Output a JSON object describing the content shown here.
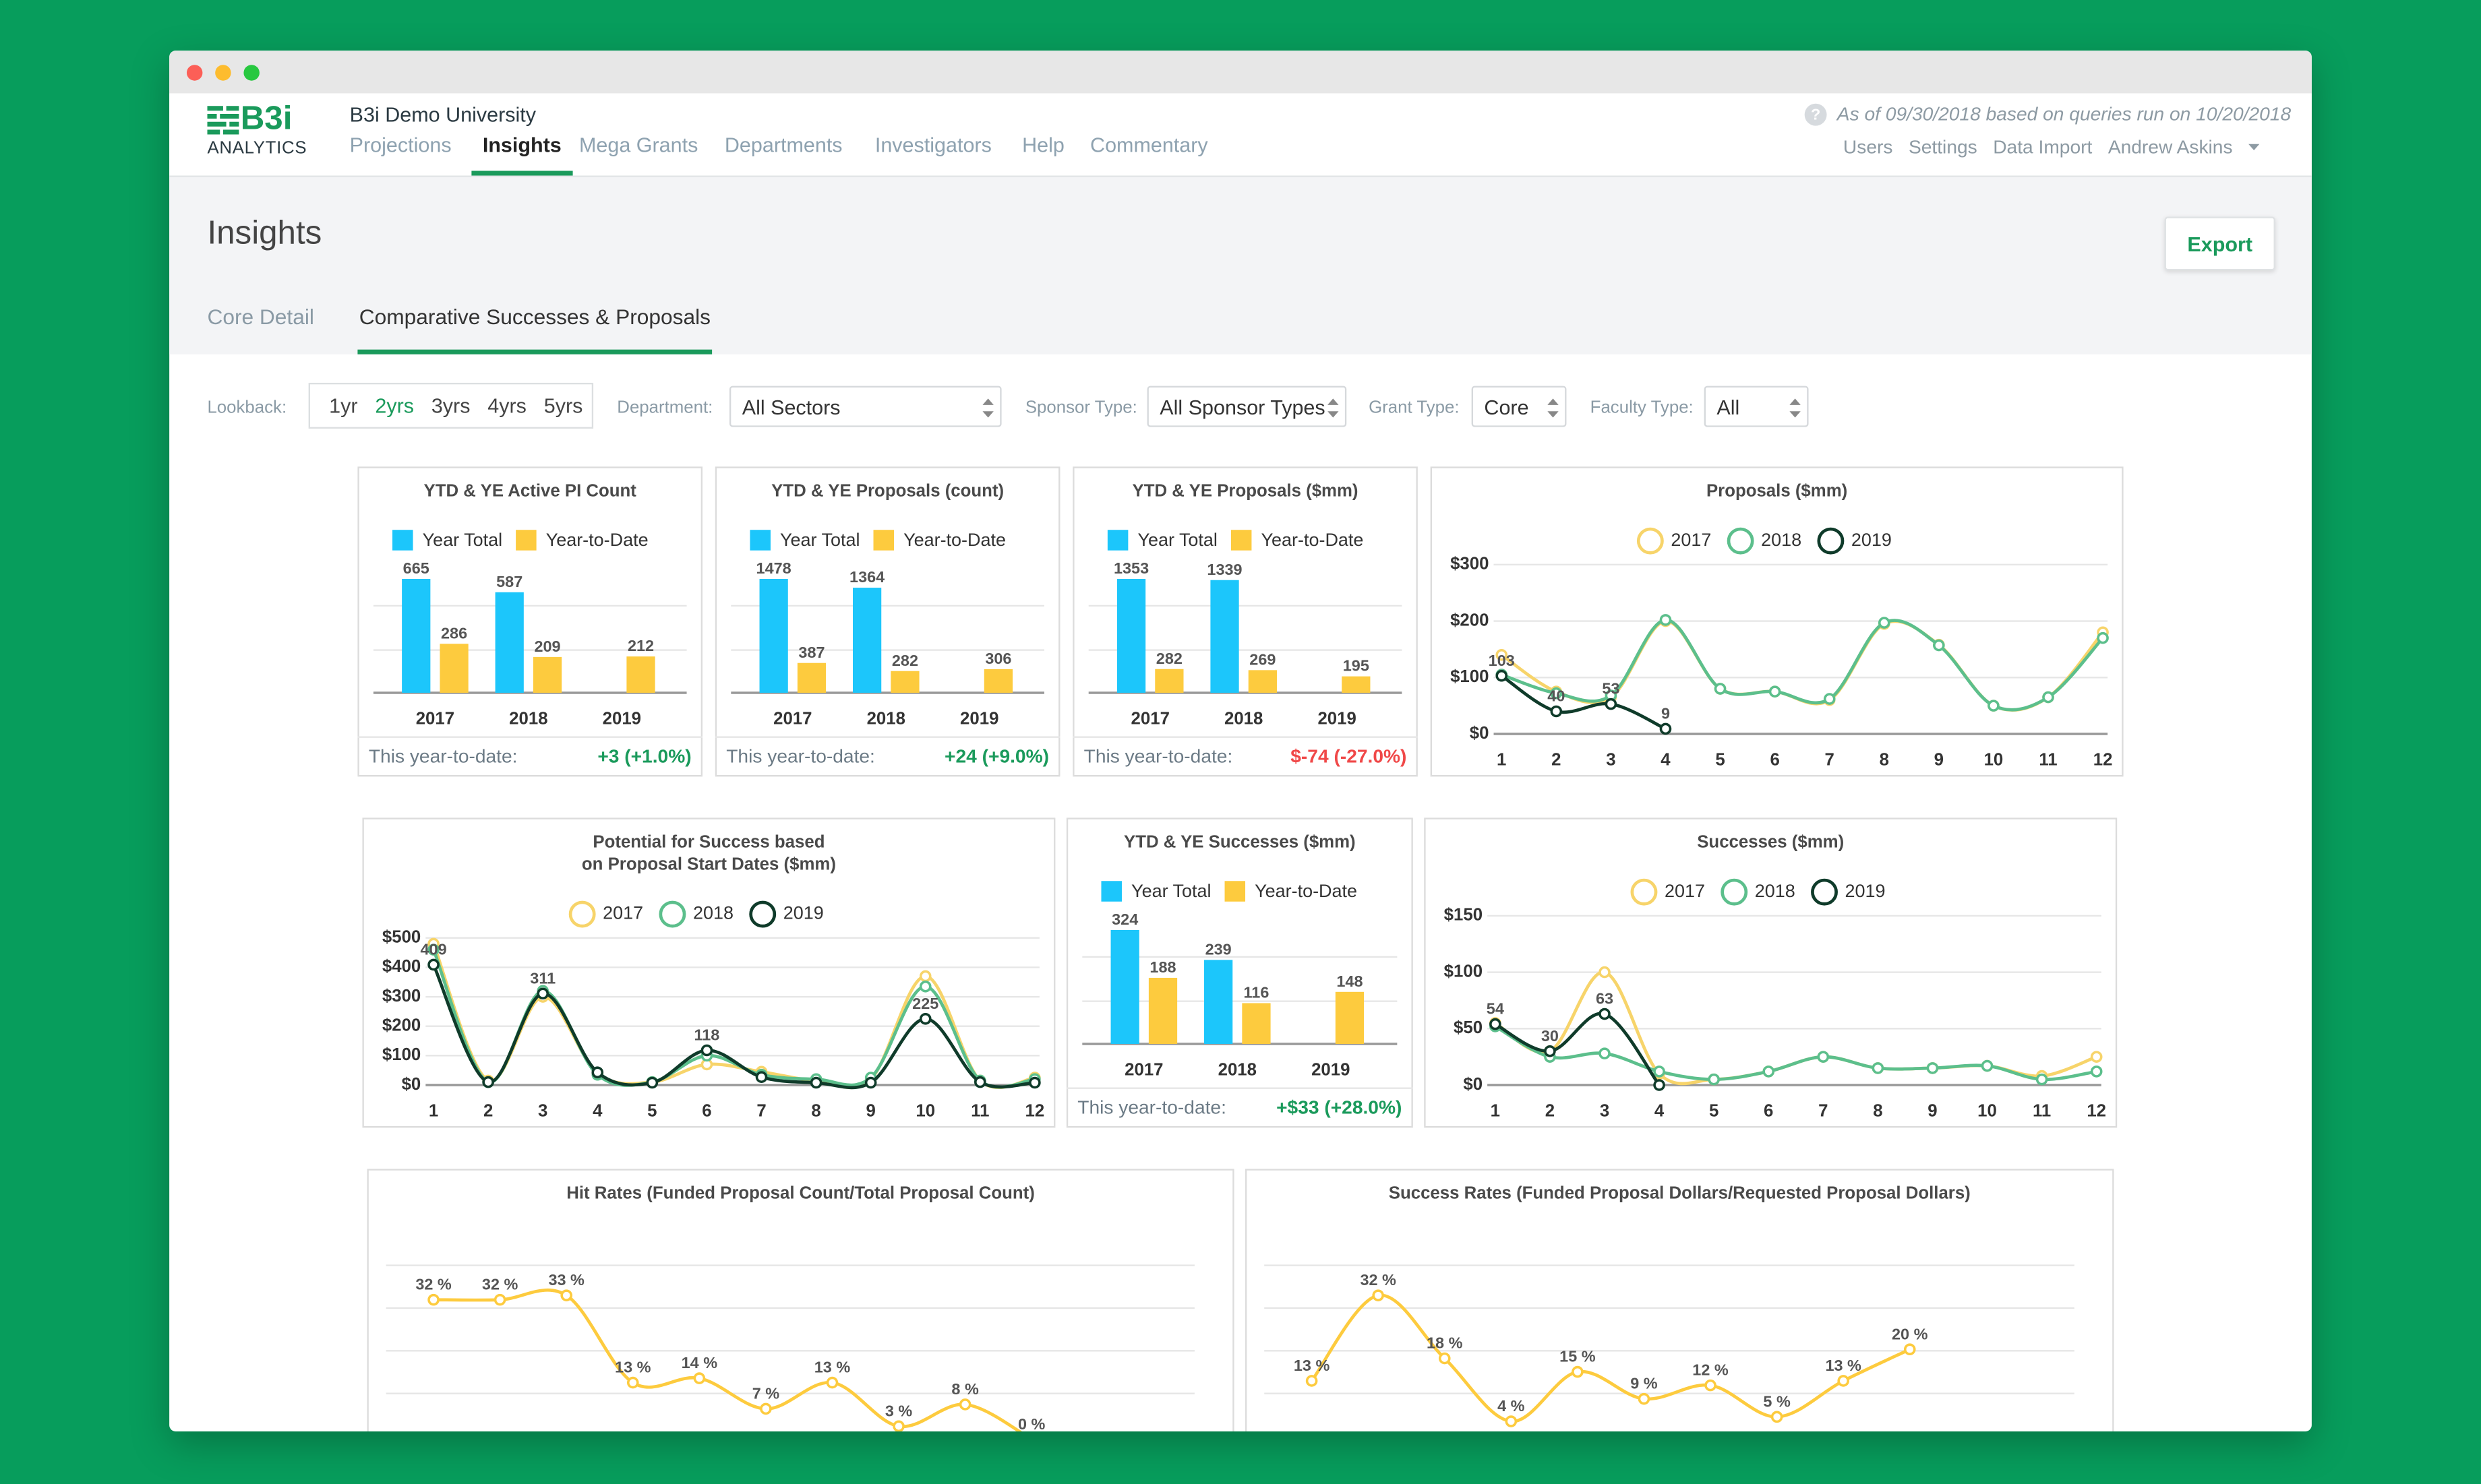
{
  "logo_top": "B3i",
  "logo_bottom": "ANALYTICS",
  "org": "B3i Demo University",
  "nav": [
    "Projections",
    "Insights",
    "Mega Grants",
    "Departments",
    "Investigators",
    "Help",
    "Commentary"
  ],
  "active_nav": 1,
  "status": "As of 09/30/2018 based on queries run on 10/20/2018",
  "user_links": [
    "Users",
    "Settings",
    "Data Import",
    "Andrew Askins"
  ],
  "page_title": "Insights",
  "export": "Export",
  "tabs": [
    "Core Detail",
    "Comparative Successes & Proposals"
  ],
  "active_tab": 1,
  "lookback_label": "Lookback:",
  "lookback": [
    "1yr",
    "2yrs",
    "3yrs",
    "4yrs",
    "5yrs"
  ],
  "active_lookback": 1,
  "selects": [
    {
      "label": "Department:",
      "value": "All Sectors"
    },
    {
      "label": "Sponsor Type:",
      "value": "All Sponsor Types"
    },
    {
      "label": "Grant Type:",
      "value": "Core"
    },
    {
      "label": "Faculty Type:",
      "value": "All"
    }
  ],
  "chart_data": [
    {
      "type": "bar",
      "title": "YTD & YE Active PI Count",
      "categories": [
        "2017",
        "2018",
        "2019"
      ],
      "series": [
        {
          "name": "Year Total",
          "color": "#1cc6fb",
          "values": [
            665,
            587,
            null
          ]
        },
        {
          "name": "Year-to-Date",
          "color": "#fdcb3e",
          "values": [
            286,
            209,
            212
          ]
        }
      ],
      "footer_label": "This year-to-date:",
      "footer_value": "+3 (+1.0%)",
      "footer_color": "#1a9a5b"
    },
    {
      "type": "bar",
      "title": "YTD & YE Proposals (count)",
      "categories": [
        "2017",
        "2018",
        "2019"
      ],
      "series": [
        {
          "name": "Year Total",
          "color": "#1cc6fb",
          "values": [
            1478,
            1364,
            null
          ]
        },
        {
          "name": "Year-to-Date",
          "color": "#fdcb3e",
          "values": [
            387,
            282,
            306
          ]
        }
      ],
      "footer_label": "This year-to-date:",
      "footer_value": "+24 (+9.0%)",
      "footer_color": "#1a9a5b"
    },
    {
      "type": "bar",
      "title": "YTD & YE Proposals ($mm)",
      "categories": [
        "2017",
        "2018",
        "2019"
      ],
      "series": [
        {
          "name": "Year Total",
          "color": "#1cc6fb",
          "values": [
            1353,
            1339,
            null
          ]
        },
        {
          "name": "Year-to-Date",
          "color": "#fdcb3e",
          "values": [
            282,
            269,
            195
          ]
        }
      ],
      "footer_label": "This year-to-date:",
      "footer_value": "$-74 (-27.0%)",
      "footer_color": "#f04848"
    },
    {
      "type": "line",
      "title": "Proposals ($mm)",
      "x": [
        1,
        2,
        3,
        4,
        5,
        6,
        7,
        8,
        9,
        10,
        11,
        12
      ],
      "ylim": [
        0,
        300
      ],
      "yticks": [
        {
          "value": 0,
          "label": "$0"
        },
        {
          "value": 100,
          "label": "$100"
        },
        {
          "value": 200,
          "label": "$200"
        },
        {
          "value": 300,
          "label": "$300"
        }
      ],
      "series": [
        {
          "name": "2017",
          "color": "#f7d46a",
          "values": [
            140,
            75,
            65,
            200,
            80,
            75,
            60,
            195,
            158,
            50,
            65,
            180
          ]
        },
        {
          "name": "2018",
          "color": "#5cbf8c",
          "values": [
            105,
            72,
            68,
            202,
            80,
            75,
            62,
            197,
            157,
            50,
            65,
            170
          ]
        },
        {
          "name": "2019",
          "color": "#0f3b2a",
          "values": [
            103,
            40,
            53,
            9,
            null,
            null,
            null,
            null,
            null,
            null,
            null,
            null
          ],
          "data_labels": true
        }
      ]
    },
    {
      "type": "line",
      "title": [
        "Potential for Success based",
        "on Proposal Start Dates ($mm)"
      ],
      "x": [
        1,
        2,
        3,
        4,
        5,
        6,
        7,
        8,
        9,
        10,
        11,
        12
      ],
      "ylim": [
        0,
        500
      ],
      "yticks": [
        {
          "value": 0,
          "label": "$0"
        },
        {
          "value": 100,
          "label": "$100"
        },
        {
          "value": 200,
          "label": "$200"
        },
        {
          "value": 300,
          "label": "$300"
        },
        {
          "value": 400,
          "label": "$400"
        },
        {
          "value": 500,
          "label": "$500"
        }
      ],
      "series": [
        {
          "name": "2017",
          "color": "#f7d46a",
          "values": [
            480,
            15,
            300,
            40,
            10,
            70,
            45,
            15,
            20,
            370,
            15,
            25
          ]
        },
        {
          "name": "2018",
          "color": "#5cbf8c",
          "values": [
            460,
            10,
            320,
            35,
            10,
            100,
            35,
            20,
            25,
            335,
            15,
            20
          ]
        },
        {
          "name": "2019",
          "color": "#0f3b2a",
          "values": [
            409,
            10,
            311,
            43,
            8,
            118,
            27,
            8,
            8,
            225,
            10,
            8
          ],
          "value_labels": [
            "409",
            null,
            "311",
            null,
            null,
            "118",
            null,
            null,
            null,
            "225",
            null,
            null
          ]
        }
      ]
    },
    {
      "type": "bar",
      "title": "YTD & YE Successes ($mm)",
      "categories": [
        "2017",
        "2018",
        "2019"
      ],
      "series": [
        {
          "name": "Year Total",
          "color": "#1cc6fb",
          "values": [
            324,
            239,
            null
          ]
        },
        {
          "name": "Year-to-Date",
          "color": "#fdcb3e",
          "values": [
            188,
            116,
            148
          ]
        }
      ],
      "footer_label": "This year-to-date:",
      "footer_value": "+$33 (+28.0%)",
      "footer_color": "#1a9a5b"
    },
    {
      "type": "line",
      "title": "Successes ($mm)",
      "x": [
        1,
        2,
        3,
        4,
        5,
        6,
        7,
        8,
        9,
        10,
        11,
        12
      ],
      "ylim": [
        0,
        150
      ],
      "yticks": [
        {
          "value": 0,
          "label": "$0"
        },
        {
          "value": 50,
          "label": "$50"
        },
        {
          "value": 100,
          "label": "$100"
        },
        {
          "value": 150,
          "label": "$150"
        }
      ],
      "series": [
        {
          "name": "2017",
          "color": "#f7d46a",
          "values": [
            55,
            30,
            100,
            10,
            5,
            12,
            25,
            15,
            15,
            17,
            8,
            25
          ]
        },
        {
          "name": "2018",
          "color": "#5cbf8c",
          "values": [
            52,
            25,
            28,
            12,
            5,
            12,
            25,
            15,
            15,
            17,
            5,
            12
          ]
        },
        {
          "name": "2019",
          "color": "#0f3b2a",
          "values": [
            54,
            30,
            63,
            0,
            null,
            null,
            null,
            null,
            null,
            null,
            null,
            null
          ],
          "value_labels": [
            "54",
            "30",
            "63",
            null,
            null,
            null,
            null,
            null,
            null,
            null,
            null,
            null
          ]
        }
      ]
    },
    {
      "type": "line",
      "title": "Hit Rates (Funded Proposal Count/Total Proposal Count)",
      "color": "#fdcb3e",
      "grid": true,
      "values": [
        32,
        32,
        33,
        13,
        14,
        7,
        13,
        3,
        8,
        0
      ],
      "value_labels": [
        "32 %",
        "32 %",
        "33 %",
        "13 %",
        "14 %",
        "7 %",
        "13 %",
        "3 %",
        "8 %",
        "0 %"
      ]
    },
    {
      "type": "line",
      "title": "Success Rates (Funded Proposal Dollars/Requested Proposal Dollars)",
      "color": "#fdcb3e",
      "grid": true,
      "values": [
        13,
        32,
        18,
        4,
        15,
        9,
        12,
        5,
        13,
        20
      ],
      "value_labels": [
        "13 %",
        "32 %",
        "18 %",
        "4 %",
        "15 %",
        "9 %",
        "12 %",
        "5 %",
        "13 %",
        "20 %"
      ]
    }
  ]
}
